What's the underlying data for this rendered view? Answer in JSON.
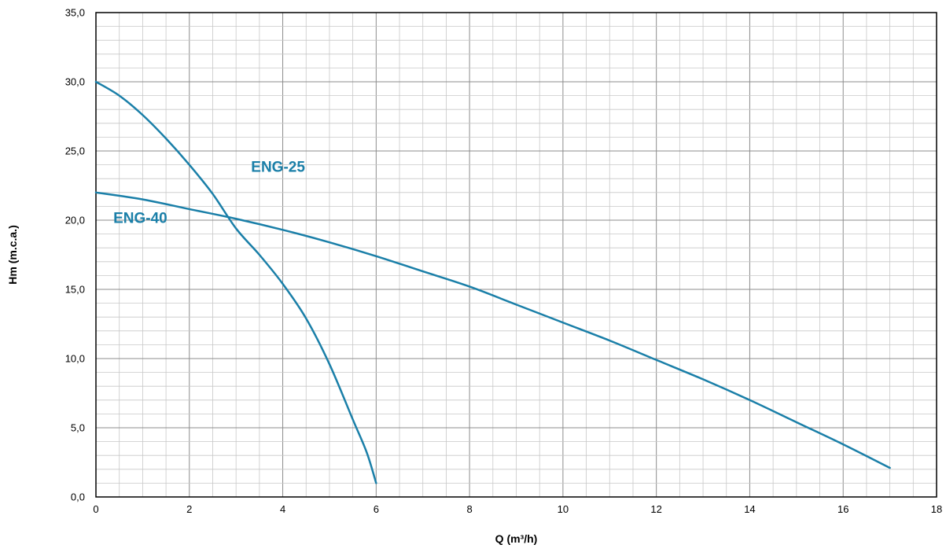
{
  "chart_data": {
    "type": "line",
    "title": "",
    "xlabel": "Q (m³/h)",
    "ylabel": "Hm (m.c.a.)",
    "xlim": [
      0,
      18
    ],
    "ylim": [
      0,
      35
    ],
    "x_ticks": [
      "0",
      "2",
      "4",
      "6",
      "8",
      "10",
      "12",
      "14",
      "16",
      "18"
    ],
    "y_ticks": [
      "0,0",
      "5,0",
      "10,0",
      "15,0",
      "20,0",
      "25,0",
      "30,0",
      "35,0"
    ],
    "grid": true,
    "legend": "none",
    "colors": {
      "curve": "#1a7fa8",
      "curve_label": "#1a7fa8",
      "major_grid": "#8c8c8c",
      "minor_grid": "#c8c8c8"
    },
    "series": [
      {
        "name": "ENG-25",
        "x": [
          0,
          0.5,
          1,
          1.5,
          2,
          2.5,
          3,
          3.5,
          4,
          4.5,
          5,
          5.5,
          5.8,
          6
        ],
        "y": [
          30.0,
          29.0,
          27.6,
          25.9,
          24.0,
          21.9,
          19.4,
          17.5,
          15.4,
          12.9,
          9.6,
          5.6,
          3.2,
          1.0
        ]
      },
      {
        "name": "ENG-40",
        "x": [
          0,
          1,
          2,
          3,
          4,
          5,
          6,
          7,
          8,
          9,
          10,
          11,
          12,
          13,
          14,
          15,
          16,
          17
        ],
        "y": [
          22.0,
          21.5,
          20.8,
          20.1,
          19.3,
          18.4,
          17.4,
          16.3,
          15.2,
          13.9,
          12.6,
          11.3,
          9.9,
          8.5,
          7.0,
          5.4,
          3.8,
          2.1
        ]
      }
    ],
    "annotations": [
      {
        "text": "ENG-25",
        "x": 3.9,
        "y": 23.5
      },
      {
        "text": "ENG-40",
        "x": 0.95,
        "y": 19.8
      }
    ]
  }
}
